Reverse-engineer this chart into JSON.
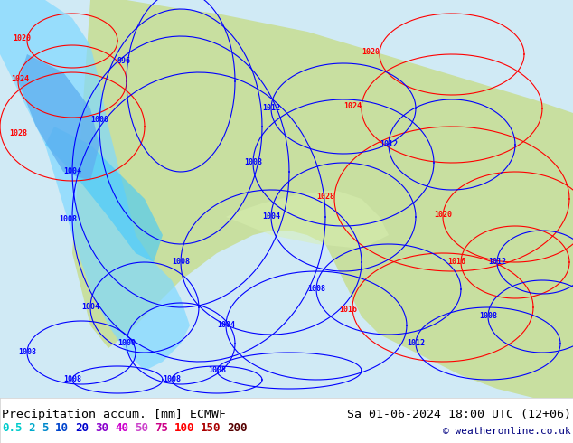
{
  "title_left": "Precipitation accum. [mm] ECMWF",
  "title_right": "Sa 01-06-2024 18:00 UTC (12+06)",
  "copyright": "© weatheronline.co.uk",
  "legend_values": [
    "0.5",
    "2",
    "5",
    "10",
    "20",
    "30",
    "40",
    "50",
    "75",
    "100",
    "150",
    "200"
  ],
  "legend_colors": [
    "#00ffff",
    "#00d4ff",
    "#00aaff",
    "#0055ff",
    "#0000ff",
    "#aa00ff",
    "#ff00ff",
    "#ff55ff",
    "#ff00aa",
    "#ff0000",
    "#aa0000",
    "#550000"
  ],
  "legend_text_colors": [
    "#00cccc",
    "#00aacc",
    "#0088cc",
    "#0044cc",
    "#0000cc",
    "#8800cc",
    "#cc00cc",
    "#cc44cc",
    "#cc0088",
    "#ff0000",
    "#aa0000",
    "#550000"
  ],
  "bg_color": "#ffffff",
  "map_bg": "#e8f4f8",
  "bottom_bar_height": 50,
  "figsize": [
    6.34,
    4.9
  ],
  "dpi": 100
}
